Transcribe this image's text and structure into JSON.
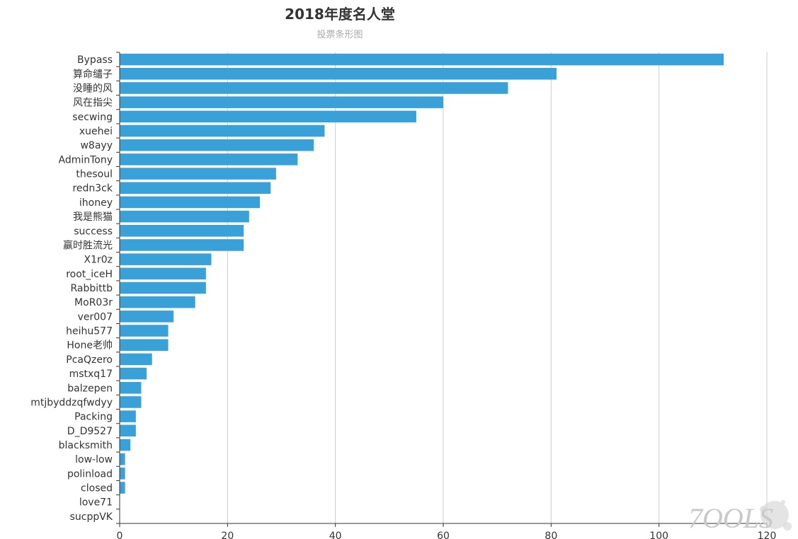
{
  "chart_data": {
    "type": "bar",
    "orientation": "horizontal",
    "title": "2018年度名人堂",
    "subtitle": "投票条形图",
    "xlabel": "",
    "ylabel": "",
    "xlim": [
      0,
      120
    ],
    "x_ticks": [
      0,
      20,
      40,
      60,
      80,
      100,
      120
    ],
    "grid": true,
    "bar_color": "#3aa0d8",
    "categories": [
      "Bypass",
      "算命缱子",
      "没睡的风",
      "风在指尖",
      "secwing",
      "xuehei",
      "w8ayy",
      "AdminTony",
      "thesoul",
      "redn3ck",
      "ihoney",
      "我是熊猫",
      "success",
      "赢时胜流光",
      "X1r0z",
      "root_iceH",
      "Rabbittb",
      "MoR03r",
      "ver007",
      "heihu577",
      "Hone老帅",
      "PcaQzero",
      "mstxq17",
      "balzepen",
      "mtjbyddzqfwdyy",
      "Packing",
      "D_D9527",
      "blacksmith",
      "low-low",
      "polinload",
      "closed",
      "love71",
      "sucppVK"
    ],
    "values": [
      112,
      81,
      72,
      60,
      55,
      38,
      36,
      33,
      29,
      28,
      26,
      24,
      23,
      23,
      17,
      16,
      16,
      14,
      10,
      9,
      9,
      6,
      5,
      4,
      4,
      3,
      3,
      2,
      1,
      1,
      1,
      0,
      0
    ]
  },
  "watermark": {
    "text": "7OOLS",
    "icon": "ink-splash-logo"
  }
}
